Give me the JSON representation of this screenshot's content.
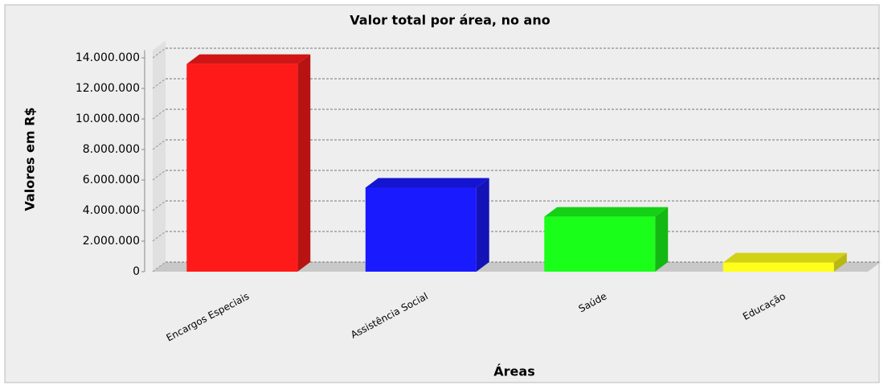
{
  "chart_data": {
    "type": "bar3d",
    "title": "Valor total por área, no ano",
    "x_label": "Áreas",
    "y_label": "Valores em R$",
    "categories": [
      "Encargos Especiais",
      "Assistência Social",
      "Saúde",
      "Educação"
    ],
    "values": [
      13600000,
      5500000,
      3600000,
      600000
    ],
    "colors": [
      "#ff1a1a",
      "#1a1aff",
      "#1aff1a",
      "#ffff1a"
    ],
    "ylim": [
      0,
      14500000
    ],
    "yticks": [
      0,
      {
        "value": 2000000,
        "label": "2.000.000"
      },
      {
        "value": 4000000,
        "label": "4.000.000"
      },
      {
        "value": 6000000,
        "label": "6.000.000"
      },
      {
        "value": 8000000,
        "label": "8.000.000"
      },
      {
        "value": 10000000,
        "label": "10.000.000"
      },
      {
        "value": 12000000,
        "label": "12.000.000"
      },
      {
        "value": 14000000,
        "label": "14.000.000"
      }
    ],
    "grid": true
  }
}
